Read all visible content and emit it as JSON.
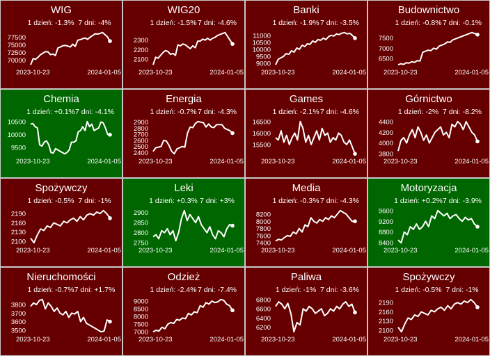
{
  "colors": {
    "down": "#660000",
    "up": "#006600",
    "line": "#ffffff",
    "border": "#c8c8c8"
  },
  "chart_data": [
    {
      "type": "line",
      "title": "WIG",
      "day": "1 dzień: -1.3%",
      "week": "7 dni: -4%",
      "trend": "down",
      "x_start": "2023-10-23",
      "x_end": "2024-01-05",
      "yticks": [
        70000,
        72500,
        75000,
        77500
      ],
      "values": [
        68500,
        70500,
        70300,
        71000,
        71800,
        72300,
        72800,
        72700,
        71800,
        72000,
        71500,
        74000,
        74300,
        74700,
        74800,
        74600,
        74300,
        75200,
        74500,
        76500,
        76700,
        77000,
        77200,
        76800,
        77500,
        78000,
        78600,
        78500,
        78700,
        79000,
        78300,
        77600,
        76200
      ]
    },
    {
      "type": "line",
      "title": "WIG20",
      "day": "1 dzień: -1.5%",
      "week": "7 dni: -4.6%",
      "trend": "down",
      "x_start": "2023-10-23",
      "x_end": "2024-01-05",
      "yticks": [
        2100,
        2200,
        2300
      ],
      "values": [
        2040,
        2120,
        2110,
        2140,
        2170,
        2190,
        2180,
        2150,
        2160,
        2140,
        2250,
        2240,
        2260,
        2250,
        2230,
        2210,
        2240,
        2220,
        2290,
        2290,
        2310,
        2300,
        2320,
        2300,
        2320,
        2330,
        2350,
        2360,
        2370,
        2380,
        2340,
        2300,
        2260
      ]
    },
    {
      "type": "line",
      "title": "Banki",
      "day": "1 dzień: -1.9%",
      "week": "7 dni: -3.5%",
      "trend": "down",
      "x_start": "2023-10-23",
      "x_end": "2024-01-05",
      "yticks": [
        9000,
        9500,
        10000,
        10500,
        11000
      ],
      "values": [
        8900,
        9300,
        9400,
        9500,
        9700,
        9650,
        9900,
        9800,
        10100,
        10000,
        10300,
        10200,
        10400,
        10350,
        10600,
        10500,
        10700,
        10650,
        10800,
        10700,
        10900,
        11000,
        10950,
        11100,
        11050,
        11150,
        11200,
        11100,
        11150,
        11000,
        10800
      ]
    },
    {
      "type": "line",
      "title": "Budownictwo",
      "day": "1 dzień: -0.8%",
      "week": "7 dni: -0.1%",
      "trend": "down",
      "x_start": "2023-10-23",
      "x_end": "2024-01-05",
      "yticks": [
        6500,
        7000,
        7500
      ],
      "values": [
        6200,
        6250,
        6220,
        6300,
        6280,
        6350,
        6320,
        6400,
        6380,
        6800,
        6850,
        6900,
        6880,
        7000,
        6950,
        7100,
        7150,
        7200,
        7300,
        7280,
        7400,
        7450,
        7500,
        7550,
        7600,
        7650,
        7700,
        7750,
        7700,
        7650
      ]
    },
    {
      "type": "line",
      "title": "Chemia",
      "day": "1 dzień: +0.1%",
      "week": "7 dni: -4.1%",
      "trend": "up",
      "x_start": "2023-10-23",
      "x_end": "2024-01-05",
      "yticks": [
        9500,
        10000,
        10500
      ],
      "values": [
        10400,
        10420,
        10300,
        10250,
        9600,
        9550,
        9700,
        9750,
        9600,
        9300,
        9280,
        9450,
        9400,
        9350,
        9300,
        9250,
        9300,
        9400,
        9700,
        9700,
        9750,
        10100,
        10150,
        10300,
        10150,
        10500,
        10300,
        10400,
        10150,
        10200,
        10250,
        10480,
        10450,
        10250,
        10000,
        9990
      ]
    },
    {
      "type": "line",
      "title": "Energia",
      "day": "1 dzień: -0.7%",
      "week": "7 dni: -4.3%",
      "trend": "down",
      "x_start": "2023-10-23",
      "x_end": "2024-01-05",
      "yticks": [
        2400,
        2500,
        2600,
        2700,
        2800,
        2900
      ],
      "values": [
        2420,
        2480,
        2490,
        2500,
        2600,
        2590,
        2520,
        2420,
        2380,
        2460,
        2480,
        2500,
        2490,
        2720,
        2820,
        2810,
        2880,
        2910,
        2900,
        2890,
        2820,
        2870,
        2820,
        2810,
        2860,
        2860,
        2860,
        2800,
        2780,
        2760,
        2720
      ]
    },
    {
      "type": "line",
      "title": "Games",
      "day": "1 dzień: -2.1%",
      "week": "7 dni: -4.6%",
      "trend": "down",
      "x_start": "2023-10-23",
      "x_end": "2024-01-05",
      "yticks": [
        15500,
        16000,
        16500
      ],
      "values": [
        15800,
        15700,
        16100,
        15600,
        15900,
        15500,
        15800,
        16000,
        15700,
        16500,
        16200,
        15600,
        15900,
        15500,
        15800,
        16100,
        15700,
        16200,
        15900,
        16000,
        15600,
        15800,
        15700,
        16000,
        15900,
        15600,
        15500,
        15700,
        15400,
        15100
      ]
    },
    {
      "type": "line",
      "title": "Górnictwo",
      "day": "1 dzień: -2%",
      "week": "7 dni: -8.2%",
      "trend": "down",
      "x_start": "2023-10-23",
      "x_end": "2024-01-05",
      "yticks": [
        3800,
        4000,
        4200,
        4400
      ],
      "values": [
        3850,
        4050,
        4100,
        4000,
        4150,
        4250,
        4100,
        4300,
        4200,
        4050,
        4150,
        4000,
        4100,
        4200,
        4250,
        4300,
        4150,
        4200,
        4100,
        4350,
        4300,
        4400,
        4350,
        4250,
        4400,
        4300,
        4200,
        4150,
        4030
      ]
    },
    {
      "type": "line",
      "title": "Spożywczy",
      "day": "1 dzień: -0.5%",
      "week": "7 dni: -1%",
      "trend": "down",
      "x_start": "2023-10-23",
      "x_end": "2024-01-05",
      "yticks": [
        2100,
        2130,
        2160,
        2190
      ],
      "values": [
        2110,
        2095,
        2120,
        2140,
        2135,
        2150,
        2145,
        2160,
        2155,
        2150,
        2165,
        2160,
        2170,
        2175,
        2165,
        2180,
        2170,
        2185,
        2190,
        2185,
        2195,
        2190,
        2200,
        2190,
        2175
      ]
    },
    {
      "type": "line",
      "title": "Leki",
      "day": "1 dzień: +0.3%",
      "week": "7 dni: +3%",
      "trend": "up",
      "x_start": "2023-10-23",
      "x_end": "2024-01-05",
      "yticks": [
        2750,
        2800,
        2850,
        2900
      ],
      "values": [
        2780,
        2790,
        2770,
        2810,
        2800,
        2820,
        2790,
        2810,
        2760,
        2800,
        2870,
        2910,
        2860,
        2890,
        2870,
        2850,
        2880,
        2840,
        2820,
        2800,
        2830,
        2790,
        2770,
        2810,
        2800,
        2780,
        2820,
        2840,
        2835
      ]
    },
    {
      "type": "line",
      "title": "Media",
      "day": "1 dzień: -0.3%",
      "week": "7 dni: -4.3%",
      "trend": "down",
      "x_start": "2023-10-23",
      "x_end": "2024-01-05",
      "yticks": [
        7400,
        7600,
        7800,
        8000,
        8200
      ],
      "values": [
        7450,
        7500,
        7480,
        7550,
        7600,
        7580,
        7700,
        7650,
        7800,
        7700,
        7900,
        7850,
        8100,
        8000,
        7950,
        8050,
        8000,
        8100,
        8050,
        8150,
        8100,
        8200,
        8300,
        8250,
        8200,
        8100,
        8000,
        8000
      ]
    },
    {
      "type": "line",
      "title": "Motoryzacja",
      "day": "1 dzień: +0.2%",
      "week": "7 dni: -3.9%",
      "trend": "up",
      "x_start": "2023-10-23",
      "x_end": "2024-01-05",
      "yticks": [
        8400,
        8800,
        9200,
        9600
      ],
      "values": [
        8500,
        8400,
        8800,
        8700,
        9000,
        8900,
        9100,
        8900,
        9000,
        9200,
        9000,
        9400,
        9300,
        9600,
        9500,
        9400,
        9500,
        9300,
        9400,
        9450,
        9300,
        9200,
        9350,
        9250,
        9300,
        9100,
        9000
      ]
    },
    {
      "type": "line",
      "title": "Nieruchomości",
      "day": "1 dzień: -0.7%",
      "week": "7 dni: +1.7%",
      "trend": "down",
      "x_start": "2023-10-23",
      "x_end": "2024-01-05",
      "yticks": [
        3500,
        3600,
        3700,
        3800
      ],
      "values": [
        3780,
        3820,
        3800,
        3850,
        3860,
        3750,
        3820,
        3780,
        3720,
        3760,
        3700,
        3680,
        3720,
        3650,
        3700,
        3690,
        3720,
        3600,
        3650,
        3580,
        3560,
        3540,
        3520,
        3500,
        3480,
        3490,
        3620,
        3600
      ]
    },
    {
      "type": "line",
      "title": "Odzież",
      "day": "1 dzień: -2.4%",
      "week": "7 dni: -7.4%",
      "trend": "down",
      "x_start": "2023-10-23",
      "x_end": "2024-01-05",
      "yticks": [
        7000,
        7500,
        8000,
        8500,
        9000
      ],
      "values": [
        7000,
        7100,
        7050,
        7300,
        7200,
        7500,
        7600,
        7550,
        7800,
        7750,
        7900,
        7850,
        8200,
        8100,
        8300,
        8250,
        8700,
        8600,
        8900,
        8800,
        9000,
        8900,
        8950,
        9100,
        9050,
        8800,
        8700,
        8400
      ]
    },
    {
      "type": "line",
      "title": "Paliwa",
      "day": "1 dzień: -1%",
      "week": "7 dni: -3.6%",
      "trend": "down",
      "x_start": "2023-10-23",
      "x_end": "2024-01-05",
      "yticks": [
        6200,
        6400,
        6600,
        6800
      ],
      "values": [
        6650,
        6750,
        6700,
        6600,
        6720,
        6500,
        6100,
        6300,
        6250,
        6600,
        6550,
        6650,
        6600,
        6500,
        6550,
        6600,
        6450,
        6500,
        6600,
        6550,
        6650,
        6600,
        6700,
        6750,
        6650,
        6700,
        6520
      ]
    },
    {
      "type": "line",
      "title": "Spożywczy",
      "day": "1 dzień: -0.5%",
      "week": "7 dni: -1%",
      "trend": "down",
      "x_start": "2023-10-23",
      "x_end": "2024-01-05",
      "yticks": [
        2100,
        2130,
        2160,
        2190
      ],
      "values": [
        2110,
        2095,
        2120,
        2140,
        2135,
        2150,
        2145,
        2160,
        2155,
        2150,
        2165,
        2160,
        2170,
        2175,
        2165,
        2180,
        2170,
        2185,
        2190,
        2185,
        2195,
        2190,
        2200,
        2190,
        2175
      ]
    }
  ]
}
